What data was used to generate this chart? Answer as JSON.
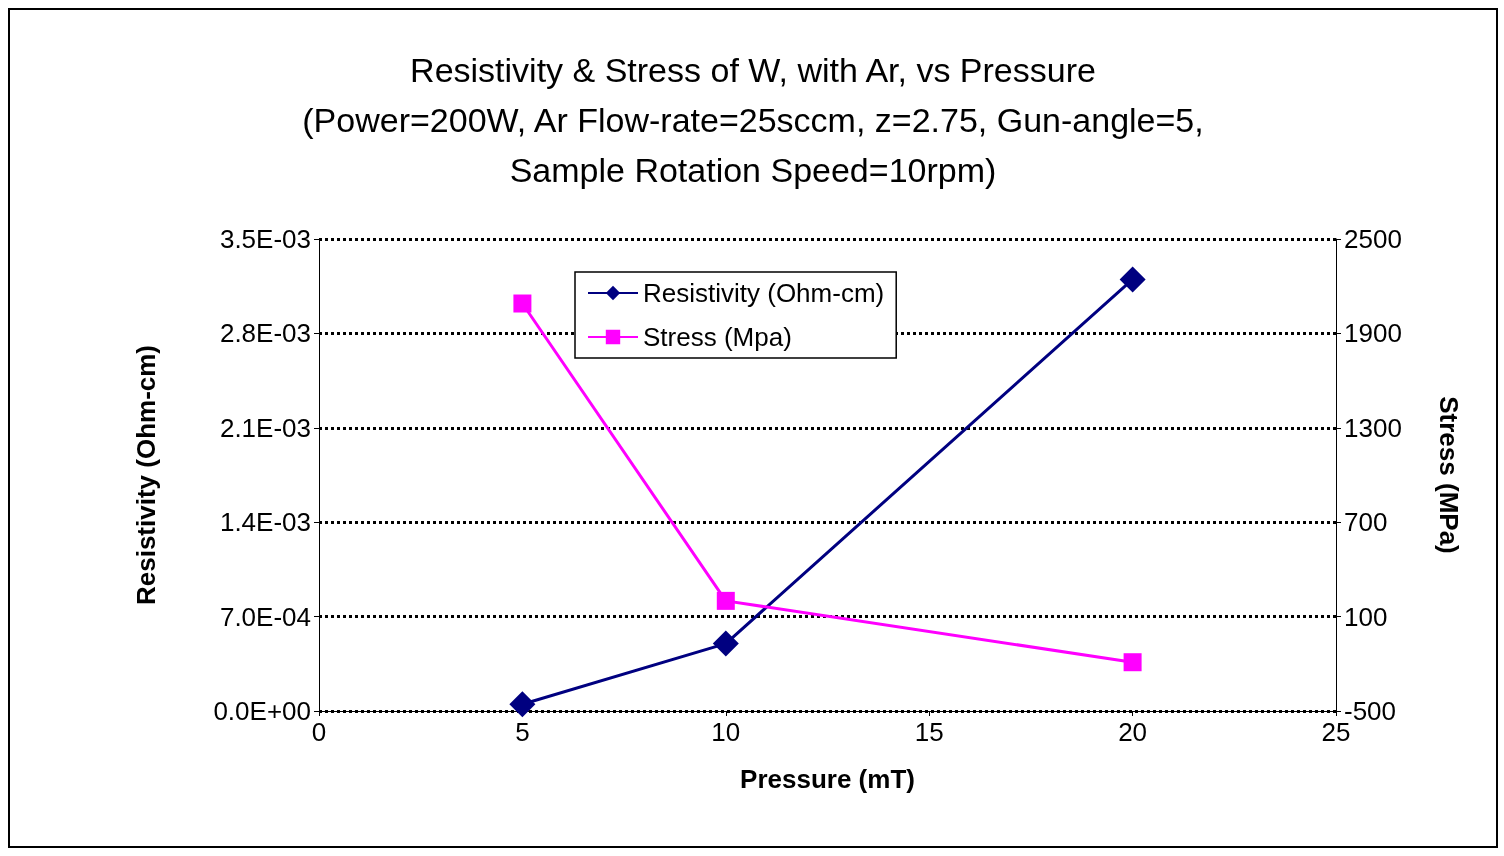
{
  "chart_data": {
    "type": "line",
    "title": "Resistivity & Stress of W, with Ar, vs Pressure\n(Power=200W, Ar Flow-rate=25sccm, z=2.75, Gun-angle=5,\nSample Rotation Speed=10rpm)",
    "xlabel": "Pressure (mT)",
    "ylabel": "Resistivity (Ohm-cm)",
    "y2label": "Stress (MPa)",
    "x": [
      5,
      10,
      20
    ],
    "series": [
      {
        "name": "Resistivity (Ohm-cm)",
        "color": "#000080",
        "values": [
          5e-05,
          0.0005,
          0.0032
        ],
        "marker": "diamond"
      },
      {
        "name": "Stress (Mpa)",
        "color": "#ff00ff",
        "values": [
          2090,
          200,
          -190
        ],
        "marker": "square",
        "axis": "y2"
      }
    ],
    "xlim": [
      0,
      25
    ],
    "xticks": [
      0,
      5,
      10,
      15,
      20,
      25
    ],
    "ylim": [
      0,
      0.0035
    ],
    "yticks": [
      {
        "value": 0,
        "label": "0.0E+00"
      },
      {
        "value": 0.0007,
        "label": "7.0E-04"
      },
      {
        "value": 0.0014,
        "label": "1.4E-03"
      },
      {
        "value": 0.0021,
        "label": "2.1E-03"
      },
      {
        "value": 0.0028,
        "label": "2.8E-03"
      },
      {
        "value": 0.0035,
        "label": "3.5E-03"
      }
    ],
    "y2lim": [
      -500,
      2500
    ],
    "y2ticks": [
      -500,
      100,
      700,
      1300,
      1900,
      2500
    ],
    "grid": "y",
    "legend": "top",
    "line_style": "solid"
  }
}
